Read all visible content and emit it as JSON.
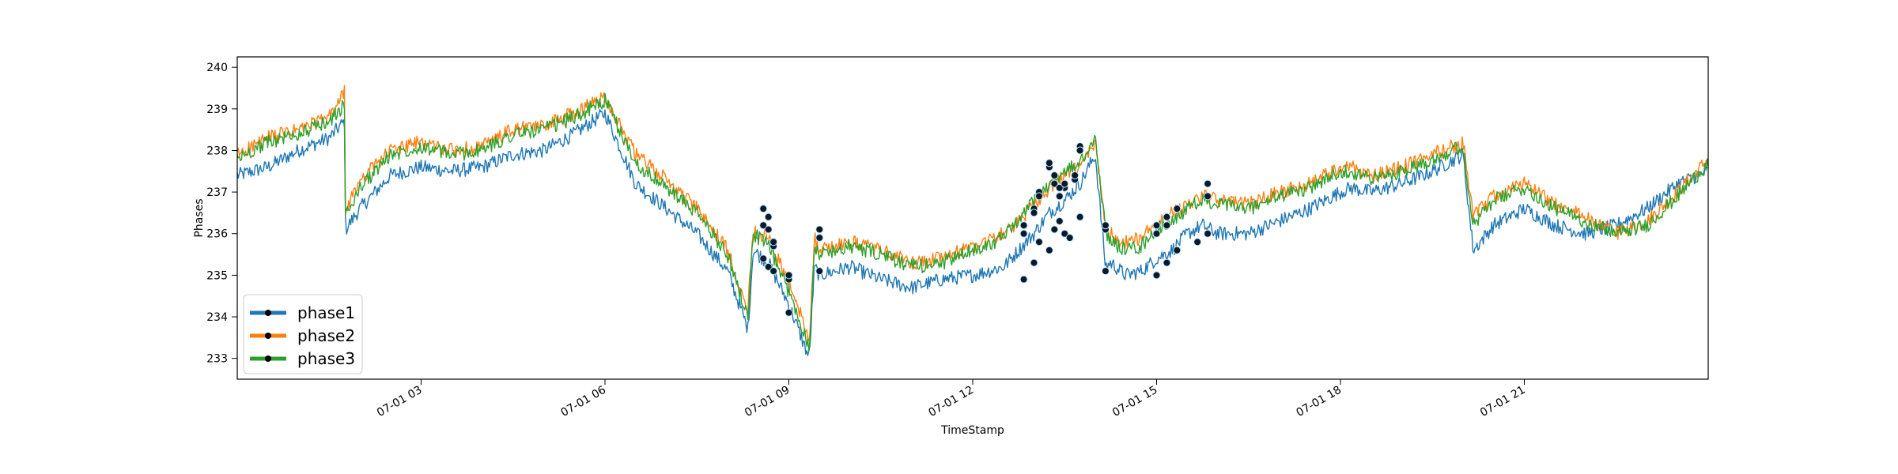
{
  "chart_data": {
    "type": "line",
    "title": "",
    "xlabel": "TimeStamp",
    "ylabel": "Phases",
    "xlim": [
      "07-01 00:00",
      "07-02 00:00"
    ],
    "ylim": [
      232.5,
      240.25
    ],
    "x_tick_labels": [
      "07-01 03",
      "07-01 06",
      "07-01 09",
      "07-01 12",
      "07-01 15",
      "07-01 18",
      "07-01 21"
    ],
    "x_tick_hours": [
      3,
      6,
      9,
      12,
      15,
      18,
      21
    ],
    "y_ticks": [
      233,
      234,
      235,
      236,
      237,
      238,
      239,
      240
    ],
    "grid": false,
    "legend_position": "lower-left",
    "series": [
      {
        "name": "phase1",
        "color": "#1f77b4",
        "x": [
          "00:00",
          "00:30",
          "01:00",
          "01:30",
          "01:45",
          "01:46",
          "02:00",
          "02:30",
          "03:00",
          "03:30",
          "04:00",
          "04:30",
          "05:00",
          "05:30",
          "06:00",
          "06:30",
          "07:00",
          "07:30",
          "08:00",
          "08:20",
          "08:25",
          "08:40",
          "09:00",
          "09:20",
          "09:25",
          "09:30",
          "10:00",
          "10:30",
          "11:00",
          "11:30",
          "12:00",
          "12:30",
          "12:45",
          "13:00",
          "13:15",
          "13:30",
          "13:45",
          "14:00",
          "14:10",
          "14:15",
          "14:30",
          "14:45",
          "15:00",
          "15:15",
          "15:30",
          "15:45",
          "16:00",
          "16:30",
          "17:00",
          "17:30",
          "18:00",
          "18:10",
          "18:30",
          "19:00",
          "19:30",
          "20:00",
          "20:10",
          "20:30",
          "21:00",
          "21:30",
          "22:00",
          "22:30",
          "23:00",
          "23:30",
          "24:00"
        ],
        "y": [
          237.4,
          237.6,
          238.0,
          238.3,
          238.7,
          236.1,
          236.6,
          237.4,
          237.6,
          237.5,
          237.6,
          237.9,
          238.0,
          238.4,
          238.9,
          237.2,
          236.6,
          236.0,
          235.1,
          233.7,
          235.6,
          235.3,
          234.3,
          233.0,
          235.2,
          235.0,
          235.2,
          234.9,
          234.7,
          234.9,
          235.0,
          235.2,
          235.6,
          236.0,
          236.5,
          236.8,
          237.2,
          237.9,
          235.2,
          235.3,
          235.0,
          235.1,
          235.4,
          235.6,
          236.0,
          236.2,
          236.0,
          236.0,
          236.3,
          236.6,
          237.0,
          237.1,
          237.0,
          237.2,
          237.5,
          237.9,
          235.6,
          236.2,
          236.6,
          236.2,
          236.0,
          236.2,
          236.6,
          237.2,
          237.5
        ]
      },
      {
        "name": "phase2",
        "color": "#ff7f0e",
        "x": [
          "00:00",
          "00:30",
          "01:00",
          "01:30",
          "01:45",
          "01:46",
          "02:00",
          "02:30",
          "03:00",
          "03:30",
          "04:00",
          "04:30",
          "05:00",
          "05:30",
          "06:00",
          "06:30",
          "07:00",
          "07:30",
          "08:00",
          "08:20",
          "08:25",
          "08:40",
          "09:00",
          "09:20",
          "09:25",
          "09:30",
          "10:00",
          "10:30",
          "11:00",
          "11:30",
          "12:00",
          "12:30",
          "12:45",
          "13:00",
          "13:15",
          "13:30",
          "13:45",
          "14:00",
          "14:10",
          "14:15",
          "14:30",
          "14:45",
          "15:00",
          "15:15",
          "15:30",
          "15:45",
          "16:00",
          "16:30",
          "17:00",
          "17:30",
          "18:00",
          "18:10",
          "18:30",
          "19:00",
          "19:30",
          "20:00",
          "20:10",
          "20:30",
          "21:00",
          "21:30",
          "22:00",
          "22:30",
          "23:00",
          "23:30",
          "24:00"
        ],
        "y": [
          237.9,
          238.3,
          238.5,
          238.8,
          239.4,
          236.5,
          237.3,
          238.0,
          238.2,
          238.0,
          238.1,
          238.5,
          238.6,
          238.9,
          239.3,
          237.9,
          237.3,
          236.6,
          235.6,
          234.2,
          236.1,
          235.9,
          234.8,
          233.5,
          235.9,
          235.6,
          235.8,
          235.6,
          235.3,
          235.4,
          235.7,
          236.0,
          236.3,
          236.7,
          237.1,
          237.4,
          237.6,
          238.2,
          236.2,
          236.0,
          235.8,
          235.9,
          236.3,
          236.5,
          236.7,
          236.9,
          236.8,
          236.7,
          237.0,
          237.2,
          237.6,
          237.6,
          237.4,
          237.6,
          237.9,
          238.2,
          236.4,
          236.9,
          237.2,
          236.7,
          236.4,
          236.0,
          236.3,
          237.0,
          237.8
        ]
      },
      {
        "name": "phase3",
        "color": "#2ca02c",
        "x": [
          "00:00",
          "00:30",
          "01:00",
          "01:30",
          "01:45",
          "01:46",
          "02:00",
          "02:30",
          "03:00",
          "03:30",
          "04:00",
          "04:30",
          "05:00",
          "05:30",
          "06:00",
          "06:30",
          "07:00",
          "07:30",
          "08:00",
          "08:20",
          "08:25",
          "08:40",
          "09:00",
          "09:20",
          "09:25",
          "09:30",
          "10:00",
          "10:30",
          "11:00",
          "11:30",
          "12:00",
          "12:30",
          "12:45",
          "13:00",
          "13:15",
          "13:30",
          "13:45",
          "14:00",
          "14:10",
          "14:15",
          "14:30",
          "14:45",
          "15:00",
          "15:15",
          "15:30",
          "15:45",
          "16:00",
          "16:30",
          "17:00",
          "17:30",
          "18:00",
          "18:10",
          "18:30",
          "19:00",
          "19:30",
          "20:00",
          "20:10",
          "20:30",
          "21:00",
          "21:30",
          "22:00",
          "22:30",
          "23:00",
          "23:30",
          "24:00"
        ],
        "y": [
          237.8,
          238.2,
          238.4,
          238.7,
          239.1,
          236.4,
          237.1,
          237.9,
          238.1,
          237.9,
          238.0,
          238.4,
          238.5,
          238.8,
          239.2,
          237.7,
          237.1,
          236.5,
          235.5,
          234.0,
          236.0,
          235.7,
          234.6,
          233.3,
          235.7,
          235.5,
          235.7,
          235.5,
          235.2,
          235.3,
          235.6,
          235.9,
          236.3,
          236.8,
          237.2,
          237.5,
          237.7,
          238.3,
          236.1,
          235.8,
          235.6,
          235.7,
          236.1,
          236.3,
          236.6,
          236.8,
          236.7,
          236.6,
          236.9,
          237.1,
          237.5,
          237.5,
          237.3,
          237.5,
          237.8,
          238.1,
          236.2,
          236.8,
          237.1,
          236.6,
          236.3,
          236.0,
          236.2,
          236.9,
          237.7
        ]
      }
    ],
    "markers": [
      {
        "series": "phase1",
        "points": [
          [
            "08:35",
            235.4
          ],
          [
            "08:40",
            235.2
          ],
          [
            "08:45",
            235.1
          ],
          [
            "09:00",
            234.1
          ],
          [
            "09:30",
            235.1
          ],
          [
            "12:50",
            234.9
          ],
          [
            "13:00",
            235.3
          ],
          [
            "13:05",
            235.8
          ],
          [
            "13:15",
            235.6
          ],
          [
            "13:20",
            236.1
          ],
          [
            "13:25",
            236.3
          ],
          [
            "13:30",
            236.0
          ],
          [
            "13:35",
            235.9
          ],
          [
            "13:45",
            236.4
          ],
          [
            "14:10",
            235.1
          ],
          [
            "15:00",
            235.0
          ],
          [
            "15:10",
            235.3
          ],
          [
            "15:20",
            235.6
          ],
          [
            "15:40",
            235.8
          ],
          [
            "15:50",
            236.0
          ]
        ]
      },
      {
        "series": "phase2",
        "points": [
          [
            "08:35",
            236.2
          ],
          [
            "08:40",
            236.4
          ],
          [
            "08:45",
            235.7
          ],
          [
            "09:00",
            234.9
          ],
          [
            "09:30",
            235.9
          ],
          [
            "12:50",
            236.2
          ],
          [
            "13:00",
            236.6
          ],
          [
            "13:05",
            237.0
          ],
          [
            "13:15",
            237.6
          ],
          [
            "13:20",
            237.2
          ],
          [
            "13:25",
            236.9
          ],
          [
            "13:30",
            237.1
          ],
          [
            "13:40",
            237.3
          ],
          [
            "13:45",
            238.1
          ],
          [
            "14:10",
            236.1
          ],
          [
            "15:00",
            236.2
          ],
          [
            "15:10",
            236.4
          ],
          [
            "15:50",
            237.2
          ]
        ]
      },
      {
        "series": "phase3",
        "points": [
          [
            "08:35",
            236.6
          ],
          [
            "08:40",
            236.1
          ],
          [
            "08:45",
            235.8
          ],
          [
            "09:00",
            235.0
          ],
          [
            "09:30",
            236.1
          ],
          [
            "12:50",
            236.0
          ],
          [
            "13:00",
            236.5
          ],
          [
            "13:05",
            236.9
          ],
          [
            "13:15",
            237.7
          ],
          [
            "13:20",
            237.4
          ],
          [
            "13:25",
            237.1
          ],
          [
            "13:30",
            237.2
          ],
          [
            "13:40",
            237.4
          ],
          [
            "13:45",
            238.0
          ],
          [
            "14:10",
            236.2
          ],
          [
            "15:00",
            236.0
          ],
          [
            "15:10",
            236.2
          ],
          [
            "15:20",
            236.6
          ],
          [
            "15:50",
            236.9
          ]
        ]
      }
    ]
  }
}
